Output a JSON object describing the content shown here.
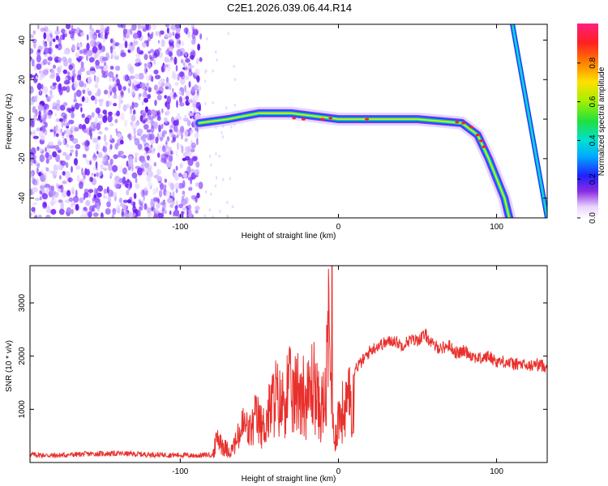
{
  "title": "C2E1.2026.039.06.44.R14",
  "chart_data": [
    {
      "type": "heatmap",
      "title": "C2E1.2026.039.06.44.R14",
      "xlabel": "Height of straight line (km)",
      "ylabel": "Frequency (Hz)",
      "xlim": [
        -195,
        132
      ],
      "ylim": [
        -50,
        48
      ],
      "xticks": [
        -100,
        0,
        100
      ],
      "yticks": [
        -40,
        -20,
        0,
        20,
        40
      ],
      "colorbar": {
        "label": "Normalized spectral amplitude",
        "range": [
          0,
          1
        ],
        "ticks": [
          0.0,
          0.2,
          0.4,
          0.6,
          0.8
        ]
      },
      "features": [
        {
          "name": "noise-region",
          "x_range": [
            -195,
            -87
          ],
          "description": "scattered low-amplitude noise"
        },
        {
          "name": "main-trace",
          "points": [
            [
              -88,
              -2
            ],
            [
              -70,
              0
            ],
            [
              -50,
              3
            ],
            [
              -30,
              3
            ],
            [
              0,
              0
            ],
            [
              50,
              0
            ],
            [
              78,
              -2
            ],
            [
              88,
              -8
            ],
            [
              95,
              -20
            ],
            [
              100,
              -30
            ],
            [
              105,
              -40
            ],
            [
              108,
              -50
            ]
          ]
        },
        {
          "name": "steep-trace",
          "points": [
            [
              110,
              48
            ],
            [
              132,
              -50
            ]
          ]
        }
      ]
    },
    {
      "type": "line",
      "xlabel": "Height of straight line (km)",
      "ylabel": "SNR (10 * v/v)",
      "xlim": [
        -195,
        132
      ],
      "ylim": [
        0,
        3700
      ],
      "xticks": [
        -100,
        0,
        100
      ],
      "yticks": [
        1000,
        2000,
        3000
      ],
      "series": [
        {
          "name": "SNR",
          "color": "#e8302c",
          "x": [
            -195,
            -180,
            -160,
            -140,
            -120,
            -100,
            -90,
            -80,
            -76,
            -72,
            -68,
            -64,
            -60,
            -56,
            -52,
            -48,
            -44,
            -40,
            -36,
            -32,
            -28,
            -24,
            -20,
            -16,
            -12,
            -8,
            -6,
            -4,
            -2,
            0,
            5,
            10,
            15,
            20,
            25,
            30,
            35,
            40,
            45,
            50,
            55,
            60,
            65,
            70,
            75,
            80,
            85,
            90,
            95,
            100,
            105,
            110,
            115,
            120,
            125,
            132
          ],
          "values": [
            150,
            130,
            160,
            170,
            150,
            140,
            130,
            150,
            700,
            400,
            300,
            600,
            1000,
            800,
            1200,
            900,
            1300,
            1800,
            1500,
            2000,
            1700,
            2100,
            1600,
            2200,
            1400,
            1700,
            3700,
            1000,
            700,
            1200,
            1500,
            1750,
            1900,
            2100,
            2200,
            2250,
            2300,
            2200,
            2300,
            2300,
            2400,
            2200,
            2150,
            2200,
            2050,
            2100,
            2000,
            1950,
            2000,
            1900,
            1900,
            1850,
            1850,
            1800,
            1850,
            1800
          ]
        }
      ]
    }
  ]
}
